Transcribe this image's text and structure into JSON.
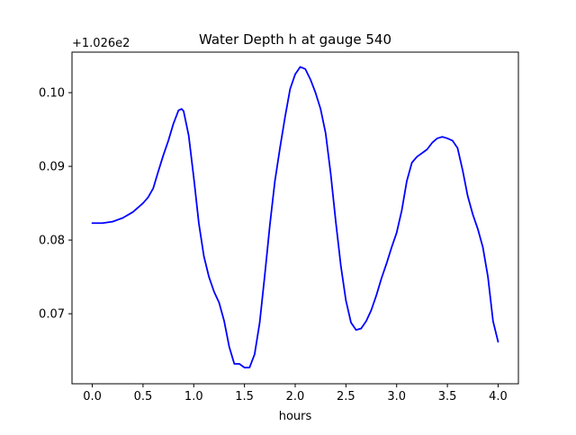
{
  "chart_data": {
    "type": "line",
    "title": "Water Depth h at gauge 540",
    "xlabel": "hours",
    "ylabel": "",
    "y_offset_label": "+1.026e2",
    "xlim": [
      -0.2,
      4.2
    ],
    "ylim": [
      0.0605,
      0.1055
    ],
    "x_ticks": [
      0.0,
      0.5,
      1.0,
      1.5,
      2.0,
      2.5,
      3.0,
      3.5,
      4.0
    ],
    "x_tick_labels": [
      "0.0",
      "0.5",
      "1.0",
      "1.5",
      "2.0",
      "2.5",
      "3.0",
      "3.5",
      "4.0"
    ],
    "y_ticks": [
      0.07,
      0.08,
      0.09,
      0.1
    ],
    "y_tick_labels": [
      "0.07",
      "0.08",
      "0.09",
      "0.10"
    ],
    "grid": false,
    "series": [
      {
        "color": "#0000ff",
        "x": [
          0.0,
          0.1,
          0.2,
          0.3,
          0.4,
          0.5,
          0.55,
          0.6,
          0.65,
          0.7,
          0.75,
          0.8,
          0.85,
          0.88,
          0.9,
          0.95,
          1.0,
          1.05,
          1.1,
          1.15,
          1.2,
          1.25,
          1.3,
          1.35,
          1.4,
          1.45,
          1.5,
          1.55,
          1.6,
          1.65,
          1.7,
          1.75,
          1.8,
          1.85,
          1.9,
          1.95,
          2.0,
          2.05,
          2.1,
          2.15,
          2.2,
          2.25,
          2.3,
          2.35,
          2.4,
          2.45,
          2.5,
          2.55,
          2.6,
          2.65,
          2.7,
          2.75,
          2.8,
          2.85,
          2.9,
          2.95,
          3.0,
          3.05,
          3.1,
          3.15,
          3.2,
          3.25,
          3.3,
          3.35,
          3.4,
          3.45,
          3.5,
          3.55,
          3.6,
          3.65,
          3.7,
          3.75,
          3.8,
          3.85,
          3.9,
          3.95,
          4.0
        ],
        "y": [
          0.0823,
          0.0823,
          0.0825,
          0.083,
          0.0838,
          0.085,
          0.0858,
          0.087,
          0.0893,
          0.0915,
          0.0935,
          0.0958,
          0.0976,
          0.0978,
          0.0975,
          0.0942,
          0.0885,
          0.0823,
          0.0778,
          0.075,
          0.073,
          0.0715,
          0.069,
          0.0655,
          0.0632,
          0.0632,
          0.0627,
          0.0627,
          0.0645,
          0.0688,
          0.0752,
          0.082,
          0.088,
          0.0925,
          0.0967,
          0.1005,
          0.1025,
          0.1035,
          0.1032,
          0.1018,
          0.1,
          0.0978,
          0.0945,
          0.089,
          0.0825,
          0.0765,
          0.0718,
          0.0688,
          0.0678,
          0.068,
          0.069,
          0.0705,
          0.0725,
          0.0748,
          0.0768,
          0.079,
          0.081,
          0.084,
          0.088,
          0.0905,
          0.0913,
          0.0918,
          0.0923,
          0.0932,
          0.0938,
          0.094,
          0.0938,
          0.0935,
          0.0925,
          0.0895,
          0.086,
          0.0835,
          0.0815,
          0.079,
          0.075,
          0.069,
          0.0662
        ]
      }
    ]
  }
}
